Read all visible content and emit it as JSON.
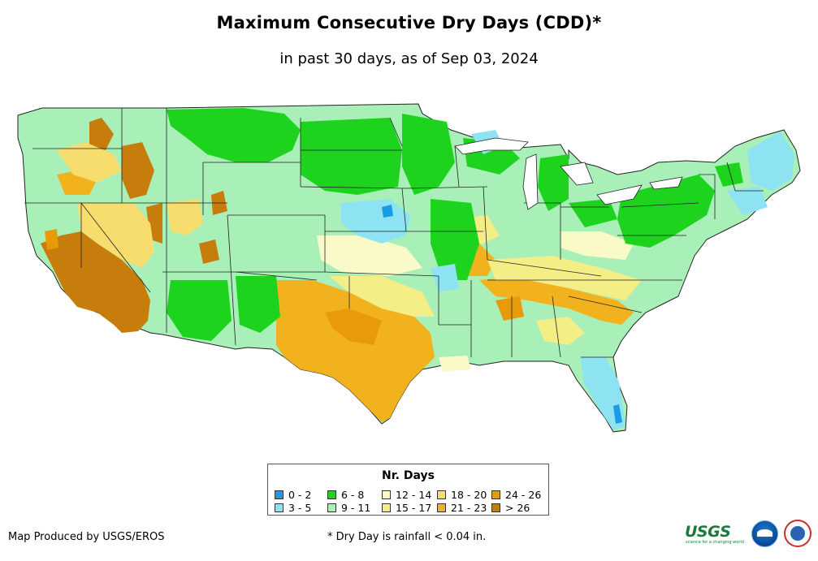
{
  "title": "Maximum Consecutive Dry Days (CDD)*",
  "subtitle": "in past 30 days, as of Sep 03, 2024",
  "legend": {
    "title": "Nr. Days",
    "items": [
      {
        "label": "0 - 2",
        "color": "#1a9be6"
      },
      {
        "label": "3 - 5",
        "color": "#8de3f2"
      },
      {
        "label": "6 - 8",
        "color": "#1ed31e"
      },
      {
        "label": "9 - 11",
        "color": "#a9f0b8"
      },
      {
        "label": "12 - 14",
        "color": "#fafac8"
      },
      {
        "label": "15 - 17",
        "color": "#f4ee86"
      },
      {
        "label": "18 - 20",
        "color": "#f7dc6e"
      },
      {
        "label": "21 - 23",
        "color": "#f2b21e"
      },
      {
        "label": "24 - 26",
        "color": "#e89a08"
      },
      {
        "label": "> 26",
        "color": "#c67d0c"
      }
    ]
  },
  "footer": {
    "credit": "Map Produced by USGS/EROS",
    "note": "* Dry Day is rainfall < 0.04 in."
  },
  "logos": {
    "usgs": "USGS",
    "usgs_tagline": "science for a changing world"
  }
}
